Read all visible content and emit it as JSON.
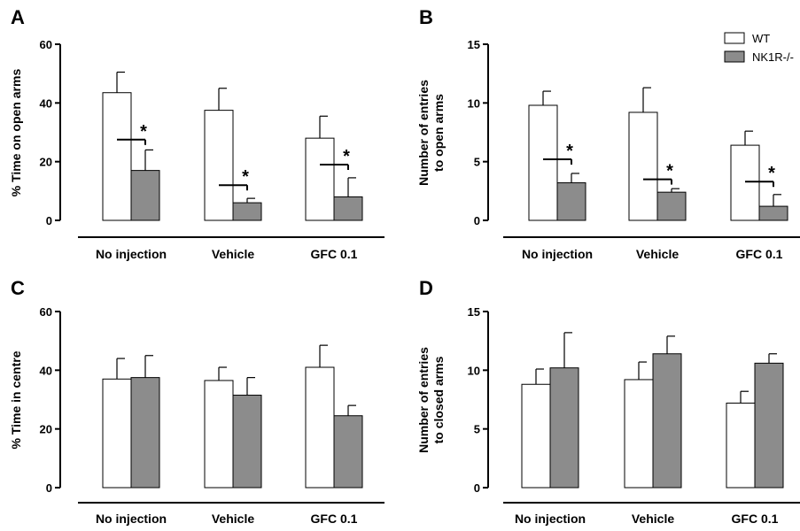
{
  "colors": {
    "wt": "#ffffff",
    "ko": "#8c8c8c",
    "axis": "#000000"
  },
  "legend": {
    "items": [
      {
        "label": "WT",
        "color": "#ffffff"
      },
      {
        "label": "NK1R-/-",
        "color": "#8c8c8c"
      }
    ]
  },
  "chart_data": [
    {
      "panel": "A",
      "type": "bar",
      "categories": [
        "No injection",
        "Vehicle",
        "GFC 0.1"
      ],
      "ylabel": "% Time on open arms",
      "ylim": [
        0,
        60
      ],
      "yticks": [
        0,
        20,
        40,
        60
      ],
      "series": [
        {
          "name": "WT",
          "values": [
            43.5,
            37.5,
            28
          ],
          "errors": [
            7,
            7.5,
            7.5
          ]
        },
        {
          "name": "NK1R-/-",
          "values": [
            17,
            6,
            8
          ],
          "errors": [
            7,
            1.5,
            6.5
          ]
        }
      ],
      "significance": [
        {
          "category": 0,
          "label": "*",
          "at": 27.5
        },
        {
          "category": 1,
          "label": "*",
          "at": 12
        },
        {
          "category": 2,
          "label": "*",
          "at": 19
        }
      ]
    },
    {
      "panel": "B",
      "type": "bar",
      "categories": [
        "No injection",
        "Vehicle",
        "GFC 0.1"
      ],
      "ylabel": [
        "Number of entries",
        "to open arms"
      ],
      "ylim": [
        0,
        15
      ],
      "yticks": [
        0,
        5,
        10,
        15
      ],
      "series": [
        {
          "name": "WT",
          "values": [
            9.8,
            9.2,
            6.4
          ],
          "errors": [
            1.2,
            2.1,
            1.2
          ]
        },
        {
          "name": "NK1R-/-",
          "values": [
            3.2,
            2.4,
            1.2
          ],
          "errors": [
            0.8,
            0.3,
            1.0
          ]
        }
      ],
      "significance": [
        {
          "category": 0,
          "label": "*",
          "at": 5.2
        },
        {
          "category": 1,
          "label": "*",
          "at": 3.5
        },
        {
          "category": 2,
          "label": "*",
          "at": 3.3
        }
      ]
    },
    {
      "panel": "C",
      "type": "bar",
      "categories": [
        "No injection",
        "Vehicle",
        "GFC 0.1"
      ],
      "ylabel": "% Time in centre",
      "ylim": [
        0,
        60
      ],
      "yticks": [
        0,
        20,
        40,
        60
      ],
      "series": [
        {
          "name": "WT",
          "values": [
            37,
            36.5,
            41
          ],
          "errors": [
            7,
            4.5,
            7.5
          ]
        },
        {
          "name": "NK1R-/-",
          "values": [
            37.5,
            31.5,
            24.5
          ],
          "errors": [
            7.5,
            6,
            3.5
          ]
        }
      ],
      "significance": []
    },
    {
      "panel": "D",
      "type": "bar",
      "categories": [
        "No injection",
        "Vehicle",
        "GFC 0.1"
      ],
      "ylabel": [
        "Number of entries",
        "to closed arms"
      ],
      "ylim": [
        0,
        15
      ],
      "yticks": [
        0,
        5,
        10,
        15
      ],
      "series": [
        {
          "name": "WT",
          "values": [
            8.8,
            9.2,
            7.2
          ],
          "errors": [
            1.3,
            1.5,
            1.0
          ]
        },
        {
          "name": "NK1R-/-",
          "values": [
            10.2,
            11.4,
            10.6
          ],
          "errors": [
            3.0,
            1.5,
            0.8
          ]
        }
      ],
      "significance": []
    }
  ]
}
